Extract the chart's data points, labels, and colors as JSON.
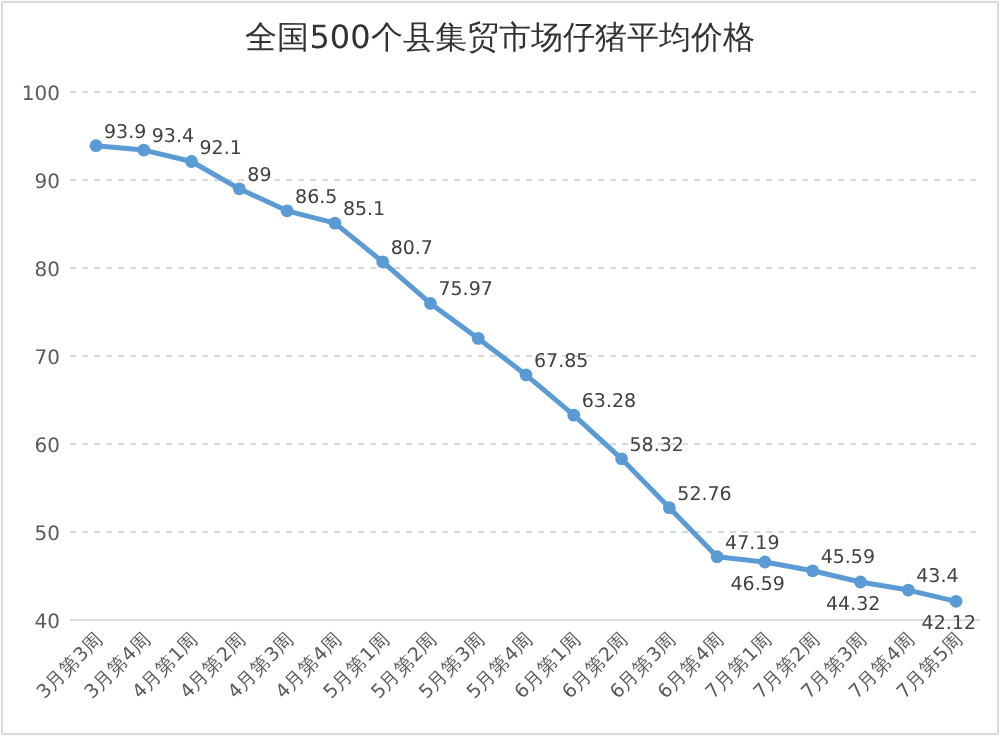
{
  "chart_data": {
    "type": "line",
    "title": "全国500个县集贸市场仔猪平均价格",
    "categories": [
      "3月第3周",
      "3月第4周",
      "4月第1周",
      "4月第2周",
      "4月第3周",
      "4月第4周",
      "5月第1周",
      "5月第2周",
      "5月第3周",
      "5月第4周",
      "6月第1周",
      "6月第2周",
      "6月第3周",
      "6月第4周",
      "7月第1周",
      "7月第2周",
      "7月第3周",
      "7月第4周",
      "7月第5周"
    ],
    "values": [
      93.9,
      93.4,
      92.1,
      89,
      86.5,
      85.1,
      80.7,
      75.97,
      72,
      67.85,
      63.28,
      58.32,
      52.76,
      47.19,
      46.59,
      45.59,
      44.32,
      43.4,
      42.12
    ],
    "value_labels": [
      "93.9",
      "93.4",
      "92.1",
      "89",
      "86.5",
      "85.1",
      "80.7",
      "75.97",
      null,
      "67.85",
      "63.28",
      "58.32",
      "52.76",
      "47.19",
      "46.59",
      "45.59",
      "44.32",
      "43.4",
      "42.12"
    ],
    "color": "#5b9bd5",
    "ylim": [
      40,
      100
    ],
    "yticks": [
      40,
      50,
      60,
      70,
      80,
      90,
      100
    ],
    "grid": "y",
    "marker": "circle",
    "line_style": "solid"
  }
}
